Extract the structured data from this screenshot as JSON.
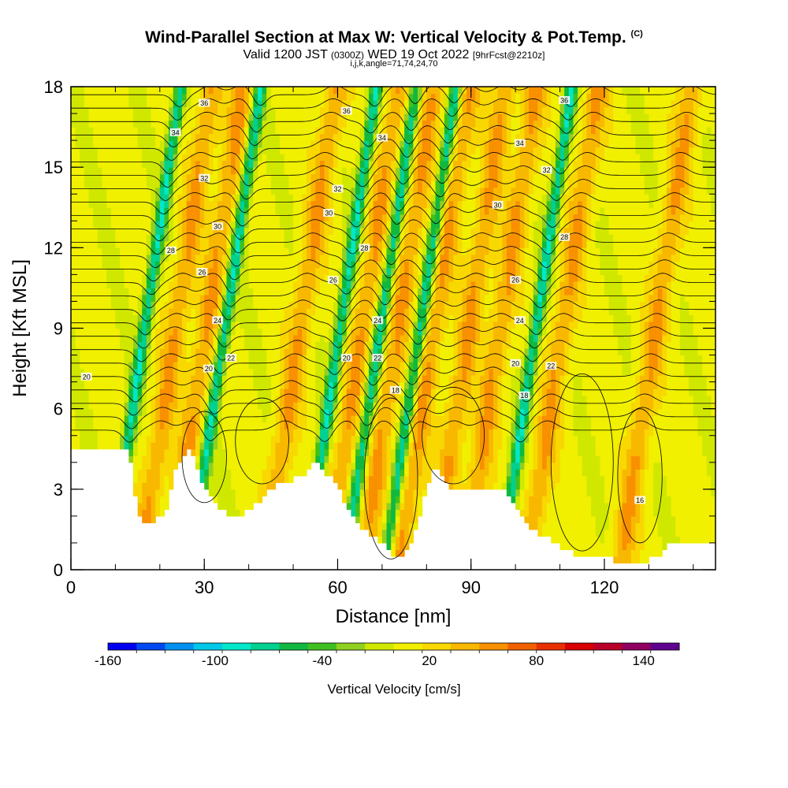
{
  "header": {
    "title": "Wind-Parallel Section at Max W: Vertical Velocity & Pot.Temp.",
    "copyright": "(C)",
    "valid_prefix": "Valid 1200 JST",
    "valid_utc": "(0300Z)",
    "valid_date": "WED 19 Oct 2022",
    "forecast": "[9hrFcst@2210z]",
    "params": "i,j,k,angle=71,74,24,70"
  },
  "colorbar": {
    "label": "Vertical Velocity [cm/s]",
    "tick_labels": [
      "-160",
      "-100",
      "-40",
      "20",
      "80",
      "140"
    ],
    "colors": [
      "#0000f0",
      "#0048f0",
      "#0090f0",
      "#00c8e8",
      "#00e8c8",
      "#00d090",
      "#10b840",
      "#40c020",
      "#90d020",
      "#d0e800",
      "#f0f000",
      "#f8d800",
      "#f8b800",
      "#f89000",
      "#f06000",
      "#e83000",
      "#d80000",
      "#b80028",
      "#900060",
      "#600090"
    ]
  },
  "chart_data": {
    "type": "heatmap",
    "title": "Wind-Parallel Section at Max W: Vertical Velocity & Pot.Temp.",
    "xlabel": "Distance [nm]",
    "ylabel": "Height [Kft MSL]",
    "xlim": [
      0,
      145
    ],
    "ylim": [
      0,
      18
    ],
    "x_ticks": [
      0,
      30,
      60,
      90,
      120
    ],
    "y_ticks": [
      0,
      3,
      6,
      9,
      12,
      15,
      18
    ],
    "x_tick_labels": [
      "0",
      "30",
      "60",
      "90",
      "120"
    ],
    "y_tick_labels": [
      "0",
      "3",
      "6",
      "9",
      "12",
      "15",
      "18"
    ],
    "color_variable": "Vertical Velocity [cm/s]",
    "color_range": [
      -160,
      160
    ],
    "contour_variable": "Potential temperature",
    "contour_levels": [
      16,
      18,
      20,
      22,
      24,
      26,
      28,
      30,
      32,
      34,
      36
    ],
    "updraft_columns_x": [
      20,
      27,
      48,
      62,
      70,
      78,
      86,
      93,
      107,
      128
    ],
    "downdraft_columns_x": [
      13,
      31,
      57,
      66,
      75,
      101
    ],
    "terrain": [
      [
        0,
        4.6
      ],
      [
        13,
        4.6
      ],
      [
        15,
        2
      ],
      [
        17,
        1.7
      ],
      [
        21,
        2
      ],
      [
        24,
        4
      ],
      [
        27,
        4.5
      ],
      [
        30,
        3
      ],
      [
        34,
        2.2
      ],
      [
        38,
        2
      ],
      [
        41,
        2.3
      ],
      [
        45,
        3
      ],
      [
        48,
        3.3
      ],
      [
        52,
        3.5
      ],
      [
        55,
        4
      ],
      [
        58,
        3.5
      ],
      [
        60,
        3.2
      ],
      [
        63,
        2
      ],
      [
        66,
        1.5
      ],
      [
        70,
        1
      ],
      [
        73,
        0.3
      ],
      [
        76,
        0.9
      ],
      [
        78,
        1.8
      ],
      [
        80,
        3
      ],
      [
        82,
        4
      ],
      [
        84,
        3.5
      ],
      [
        86,
        3
      ],
      [
        89,
        3
      ],
      [
        93,
        3
      ],
      [
        96,
        3
      ],
      [
        98,
        3
      ],
      [
        101,
        2
      ],
      [
        105,
        1.3
      ],
      [
        108,
        1.1
      ],
      [
        112,
        0.7
      ],
      [
        117,
        0.4
      ],
      [
        120,
        0.5
      ],
      [
        123,
        0.3
      ],
      [
        129,
        0.3
      ],
      [
        132,
        0.5
      ],
      [
        135,
        1
      ],
      [
        145,
        1
      ]
    ],
    "contour_label_positions": [
      {
        "level": "16",
        "x": 128,
        "y": 2.6
      },
      {
        "level": "18",
        "x": 73,
        "y": 6.7
      },
      {
        "level": "18",
        "x": 102,
        "y": 6.5
      },
      {
        "level": "20",
        "x": 3.5,
        "y": 7.2
      },
      {
        "level": "20",
        "x": 31,
        "y": 7.5
      },
      {
        "level": "20",
        "x": 62,
        "y": 7.9
      },
      {
        "level": "20",
        "x": 100,
        "y": 7.7
      },
      {
        "level": "22",
        "x": 36,
        "y": 7.9
      },
      {
        "level": "22",
        "x": 69,
        "y": 7.9
      },
      {
        "level": "22",
        "x": 108,
        "y": 7.6
      },
      {
        "level": "24",
        "x": 33,
        "y": 9.3
      },
      {
        "level": "24",
        "x": 69,
        "y": 9.3
      },
      {
        "level": "24",
        "x": 101,
        "y": 9.3
      },
      {
        "level": "26",
        "x": 29.5,
        "y": 11.1
      },
      {
        "level": "26",
        "x": 59,
        "y": 10.8
      },
      {
        "level": "26",
        "x": 100,
        "y": 10.8
      },
      {
        "level": "28",
        "x": 22.5,
        "y": 11.9
      },
      {
        "level": "28",
        "x": 66,
        "y": 12
      },
      {
        "level": "28",
        "x": 111,
        "y": 12.4
      },
      {
        "level": "30",
        "x": 33,
        "y": 12.8
      },
      {
        "level": "30",
        "x": 58,
        "y": 13.3
      },
      {
        "level": "30",
        "x": 96,
        "y": 13.6
      },
      {
        "level": "32",
        "x": 30,
        "y": 14.6
      },
      {
        "level": "32",
        "x": 60,
        "y": 14.2
      },
      {
        "level": "32",
        "x": 107,
        "y": 14.9
      },
      {
        "level": "34",
        "x": 23.5,
        "y": 16.3
      },
      {
        "level": "34",
        "x": 70,
        "y": 16.1
      },
      {
        "level": "34",
        "x": 101,
        "y": 15.9
      },
      {
        "level": "36",
        "x": 30,
        "y": 17.4
      },
      {
        "level": "36",
        "x": 62,
        "y": 17.1
      },
      {
        "level": "36",
        "x": 111,
        "y": 17.5
      }
    ]
  }
}
